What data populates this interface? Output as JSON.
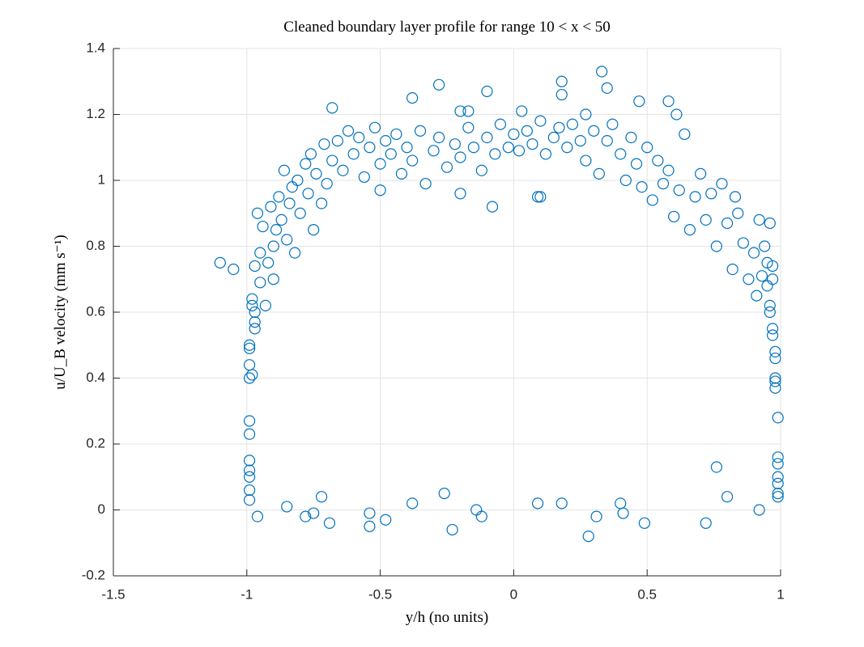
{
  "chart_data": {
    "type": "scatter",
    "title": "Cleaned boundary layer profile for range 10 < x < 50",
    "x_label": "y/h (no units)",
    "y_label": "u/U_B velocity (mm s⁻¹)",
    "xlim": [
      -1.5,
      1
    ],
    "xticks": [
      -1.5,
      -1,
      -0.5,
      0,
      0.5,
      1
    ],
    "ylim": [
      -0.2,
      1.4
    ],
    "yticks": [
      -0.2,
      0,
      0.2,
      0.4,
      0.6,
      0.8,
      1,
      1.2,
      1.4
    ],
    "grid": true,
    "series": [
      {
        "color": "#0072bd",
        "x": [
          -0.96,
          -0.85,
          -0.78,
          -0.75,
          -0.72,
          -0.69,
          -0.54,
          -0.54,
          -0.48,
          -0.38,
          -0.26,
          -0.23,
          -0.14,
          -0.12,
          0.09,
          0.18,
          0.28,
          0.31,
          0.4,
          0.41,
          0.49,
          0.72,
          0.76,
          0.8,
          0.92,
          -1.1,
          -1.05,
          -0.99,
          -0.99,
          -0.99,
          -0.99,
          -0.99,
          -0.99,
          -0.99,
          -0.99,
          -0.99,
          -0.99,
          -0.99,
          -0.98,
          -0.98,
          -0.98,
          -0.97,
          -0.97,
          -0.97,
          0.99,
          0.99,
          0.99,
          0.99,
          0.99,
          0.99,
          0.99,
          0.98,
          0.98,
          0.98,
          0.98,
          0.98,
          0.97,
          0.97,
          0.96,
          0.96,
          -0.68,
          -0.38,
          -0.28,
          -0.2,
          -0.17,
          -0.1,
          0.18,
          0.18,
          0.33,
          0.35,
          0.47,
          0.58,
          0.61,
          0.03,
          0.27,
          -0.2,
          -0.08,
          0.09,
          0.1,
          -0.5,
          -0.97,
          -0.96,
          -0.95,
          -0.95,
          -0.94,
          -0.93,
          -0.92,
          -0.91,
          -0.9,
          -0.9,
          -0.89,
          -0.88,
          -0.87,
          -0.86,
          -0.85,
          -0.84,
          -0.83,
          -0.82,
          -0.81,
          -0.8,
          -0.78,
          -0.77,
          -0.76,
          -0.75,
          -0.74,
          -0.72,
          -0.71,
          -0.7,
          -0.68,
          -0.66,
          -0.64,
          -0.62,
          -0.6,
          -0.58,
          -0.56,
          -0.54,
          -0.52,
          -0.5,
          -0.48,
          -0.46,
          -0.44,
          -0.42,
          -0.4,
          -0.38,
          -0.35,
          -0.33,
          -0.3,
          -0.28,
          -0.25,
          -0.22,
          -0.2,
          -0.17,
          -0.15,
          -0.12,
          -0.1,
          -0.07,
          -0.05,
          -0.02,
          0,
          0.02,
          0.05,
          0.07,
          0.1,
          0.12,
          0.15,
          0.17,
          0.2,
          0.22,
          0.25,
          0.27,
          0.3,
          0.32,
          0.35,
          0.37,
          0.4,
          0.42,
          0.44,
          0.46,
          0.48,
          0.5,
          0.52,
          0.54,
          0.56,
          0.58,
          0.6,
          0.62,
          0.64,
          0.66,
          0.68,
          0.7,
          0.72,
          0.74,
          0.76,
          0.78,
          0.8,
          0.82,
          0.84,
          0.86,
          0.88,
          0.9,
          0.91,
          0.92,
          0.93,
          0.94,
          0.95,
          0.95,
          0.96,
          0.97,
          0.97,
          0.83
        ],
        "values": [
          -0.02,
          0.01,
          -0.02,
          -0.01,
          0.04,
          -0.04,
          -0.01,
          -0.05,
          -0.03,
          0.02,
          0.05,
          -0.06,
          0,
          -0.02,
          0.02,
          0.02,
          -0.08,
          -0.02,
          0.02,
          -0.01,
          -0.04,
          -0.04,
          0.13,
          0.04,
          0,
          0.75,
          0.73,
          0.03,
          0.06,
          0.1,
          0.12,
          0.15,
          0.23,
          0.27,
          0.4,
          0.44,
          0.49,
          0.5,
          0.41,
          0.62,
          0.64,
          0.6,
          0.55,
          0.57,
          0.04,
          0.05,
          0.08,
          0.1,
          0.14,
          0.16,
          0.28,
          0.37,
          0.39,
          0.4,
          0.46,
          0.48,
          0.53,
          0.55,
          0.6,
          0.62,
          1.22,
          1.25,
          1.29,
          1.21,
          1.21,
          1.27,
          1.3,
          1.26,
          1.33,
          1.28,
          1.24,
          1.24,
          1.2,
          1.21,
          1.2,
          0.96,
          0.92,
          0.95,
          0.95,
          0.97,
          0.74,
          0.9,
          0.69,
          0.78,
          0.86,
          0.62,
          0.75,
          0.92,
          0.8,
          0.7,
          0.85,
          0.95,
          0.88,
          1.03,
          0.82,
          0.93,
          0.98,
          0.78,
          1.0,
          0.9,
          1.05,
          0.96,
          1.08,
          0.85,
          1.02,
          0.93,
          1.11,
          0.99,
          1.06,
          1.12,
          1.03,
          1.15,
          1.08,
          1.13,
          1.01,
          1.1,
          1.16,
          1.05,
          1.12,
          1.08,
          1.14,
          1.02,
          1.1,
          1.06,
          1.15,
          0.99,
          1.09,
          1.13,
          1.04,
          1.11,
          1.07,
          1.16,
          1.1,
          1.03,
          1.13,
          1.08,
          1.17,
          1.1,
          1.14,
          1.09,
          1.15,
          1.11,
          1.18,
          1.08,
          1.13,
          1.16,
          1.1,
          1.17,
          1.12,
          1.06,
          1.15,
          1.02,
          1.12,
          1.17,
          1.08,
          1.0,
          1.13,
          1.05,
          0.98,
          1.1,
          0.94,
          1.06,
          0.99,
          1.03,
          0.89,
          0.97,
          1.14,
          0.85,
          0.95,
          1.02,
          0.88,
          0.96,
          0.8,
          0.99,
          0.87,
          0.73,
          0.9,
          0.81,
          0.7,
          0.78,
          0.65,
          0.88,
          0.71,
          0.8,
          0.68,
          0.75,
          0.87,
          0.74,
          0.7,
          0.95
        ]
      }
    ]
  }
}
